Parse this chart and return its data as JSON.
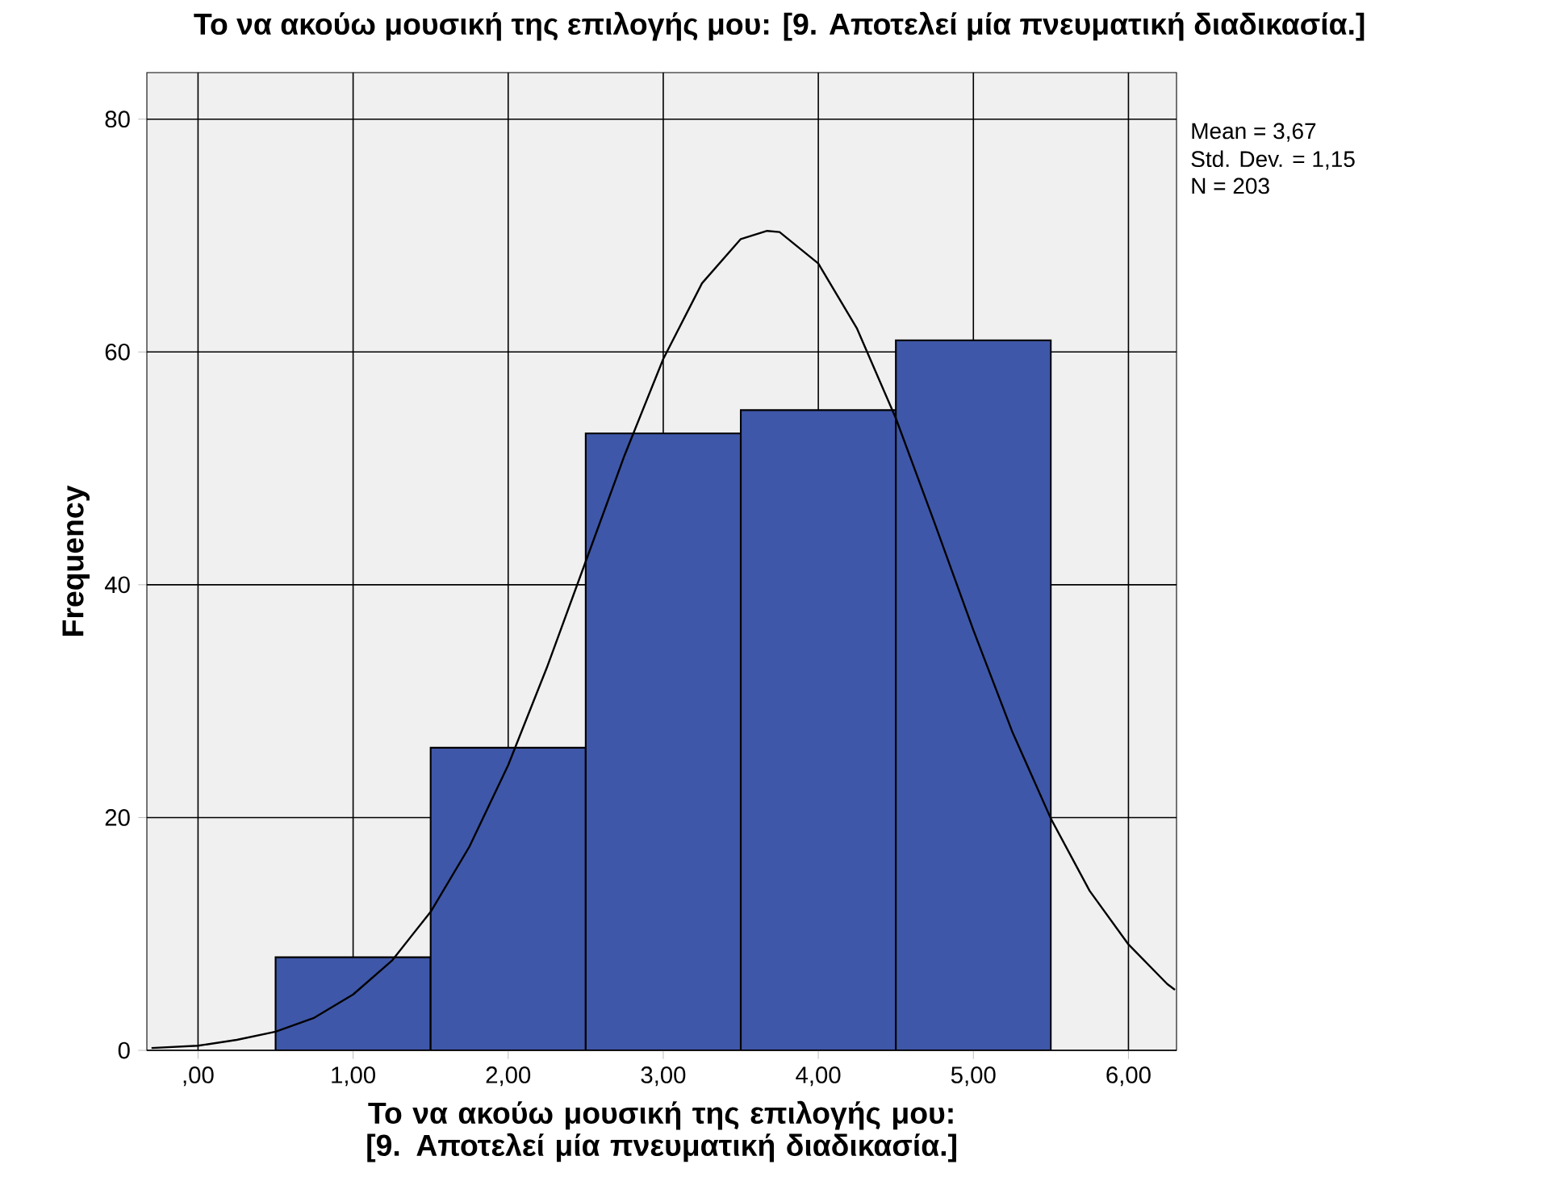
{
  "chart_data": {
    "type": "histogram",
    "title": "Το να ακούω μουσική της επιλογής μου: [9. Αποτελεί μία πνευματική διαδικασία.]",
    "xlabel": "Το να ακούω μουσική της επιλογής μου: [9. Αποτελεί μία πνευματική διαδικασία.]",
    "ylabel": "Frequency",
    "annotations": [
      "Mean = 3,67",
      "Std. Dev. = 1,15",
      "N = 203"
    ],
    "bins": [
      0.5,
      1.5,
      2.5,
      3.5,
      4.5,
      5.5
    ],
    "values": [
      8,
      26,
      53,
      55,
      61
    ],
    "color": "#3f57a8",
    "series": [
      {
        "type": "line",
        "color": "#000000",
        "x": [
          -0.3,
          0,
          0.25,
          0.5,
          0.75,
          1.0,
          1.25,
          1.5,
          1.75,
          2.0,
          2.25,
          2.5,
          2.75,
          3.0,
          3.25,
          3.5,
          3.67,
          3.75,
          4.0,
          4.25,
          4.5,
          4.75,
          5.0,
          5.25,
          5.5,
          5.75,
          6.0,
          6.25,
          6.3
        ],
        "values": [
          0.2,
          0.4,
          0.9,
          1.6,
          2.8,
          4.8,
          7.7,
          11.9,
          17.5,
          24.5,
          32.9,
          42.0,
          51.1,
          59.4,
          65.9,
          69.7,
          70.4,
          70.3,
          67.6,
          62.0,
          54.3,
          45.3,
          36.1,
          27.4,
          19.9,
          13.7,
          9.1,
          5.7,
          5.2
        ]
      }
    ],
    "xlim": [
      -0.33,
      6.31
    ],
    "ylim": [
      0,
      84
    ],
    "xticks": [
      {
        "value": 0,
        "label": ",00"
      },
      {
        "value": 1,
        "label": "1,00"
      },
      {
        "value": 2,
        "label": "2,00"
      },
      {
        "value": 3,
        "label": "3,00"
      },
      {
        "value": 4,
        "label": "4,00"
      },
      {
        "value": 5,
        "label": "5,00"
      },
      {
        "value": 6,
        "label": "6,00"
      }
    ],
    "yticks": [
      0,
      20,
      40,
      60,
      80
    ],
    "grid": true
  }
}
